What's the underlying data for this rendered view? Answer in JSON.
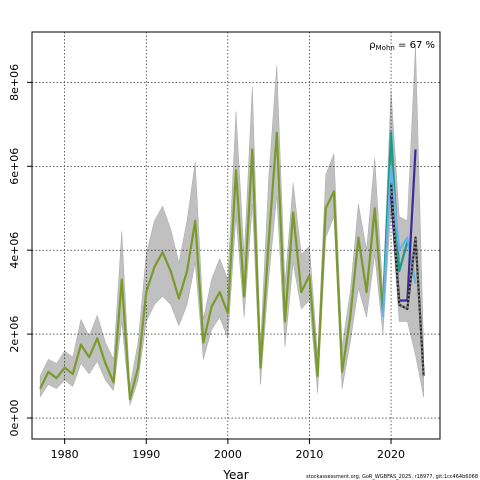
{
  "chart_data": {
    "type": "line",
    "title": "",
    "xlabel": "Year",
    "ylabel": "",
    "xlim": [
      1976,
      2026
    ],
    "ylim": [
      -500000,
      9200000
    ],
    "grid": true,
    "x_ticks": [
      1980,
      1990,
      2000,
      2010,
      2020
    ],
    "y_ticks": [
      0,
      2000000,
      4000000,
      6000000,
      8000000
    ],
    "y_tick_labels": [
      "0e+00",
      "2e+06",
      "4e+06",
      "6e+06",
      "8e+06"
    ],
    "annotation": {
      "rho_symbol": "ρ",
      "rho_subscript": "Mohn",
      "rho_value": " = 67 %"
    },
    "credit": "stockassessment.org, GoR_WGBFAS_2025, r18977, git:1cc464b6068",
    "confidence_band": {
      "x": [
        1977,
        1978,
        1979,
        1980,
        1981,
        1982,
        1983,
        1984,
        1985,
        1986,
        1987,
        1988,
        1989,
        1990,
        1991,
        1992,
        1993,
        1994,
        1995,
        1996,
        1997,
        1998,
        1999,
        2000,
        2001,
        2002,
        2003,
        2004,
        2005,
        2006,
        2007,
        2008,
        2009,
        2010,
        2011,
        2012,
        2013,
        2014,
        2015,
        2016,
        2017,
        2018,
        2019,
        2020,
        2021,
        2022,
        2023,
        2024
      ],
      "lower": [
        500000,
        800000,
        700000,
        900000,
        750000,
        1300000,
        1050000,
        1350000,
        900000,
        650000,
        2300000,
        300000,
        900000,
        2300000,
        2700000,
        2900000,
        2700000,
        2200000,
        2700000,
        3700000,
        1400000,
        2100000,
        2400000,
        1900000,
        4800000,
        2400000,
        5100000,
        800000,
        3300000,
        5300000,
        1700000,
        3700000,
        2600000,
        2800000,
        600000,
        4300000,
        4800000,
        700000,
        1800000,
        3100000,
        2400000,
        3900000,
        2000000,
        5000000,
        2300000,
        2300000,
        1500000,
        500000
      ],
      "upper": [
        1000000,
        1400000,
        1300000,
        1600000,
        1450000,
        2350000,
        1950000,
        2450000,
        1800000,
        1400000,
        4450000,
        750000,
        1800000,
        3900000,
        4700000,
        5050000,
        4500000,
        3700000,
        4700000,
        6100000,
        2350000,
        3300000,
        3800000,
        3300000,
        7300000,
        3850000,
        7900000,
        1700000,
        5700000,
        8400000,
        3200000,
        5600000,
        3900000,
        4100000,
        1500000,
        5800000,
        6300000,
        1700000,
        3000000,
        5100000,
        4000000,
        6200000,
        3000000,
        7800000,
        4800000,
        4700000,
        8900000,
        1600000
      ]
    },
    "series": [
      {
        "color": "#7a9a2a",
        "x": [
          1977,
          1978,
          1979,
          1980,
          1981,
          1982,
          1983,
          1984,
          1985,
          1986,
          1987,
          1988,
          1989,
          1990,
          1991,
          1992,
          1993,
          1994,
          1995,
          1996,
          1997,
          1998,
          1999,
          2000,
          2001,
          2002,
          2003,
          2004,
          2005,
          2006,
          2007,
          2008,
          2009,
          2010,
          2011,
          2012,
          2013,
          2014,
          2015,
          2016,
          2017,
          2018,
          2019,
          2020
        ],
        "values": [
          700000,
          1100000,
          950000,
          1200000,
          1050000,
          1750000,
          1450000,
          1900000,
          1300000,
          850000,
          3300000,
          450000,
          1200000,
          3000000,
          3600000,
          3950000,
          3500000,
          2850000,
          3500000,
          4700000,
          1800000,
          2650000,
          3000000,
          2500000,
          5900000,
          2900000,
          6400000,
          1200000,
          4200000,
          6800000,
          2300000,
          4900000,
          3000000,
          3400000,
          1000000,
          5000000,
          5400000,
          1100000,
          2400000,
          4300000,
          3000000,
          5000000,
          2500000,
          6300000
        ]
      },
      {
        "color": "#1a9a8a",
        "x": [
          2019,
          2020,
          2021,
          2022
        ],
        "values": [
          2600000,
          6800000,
          3500000,
          4200000
        ]
      },
      {
        "color": "#6ab0e8",
        "x": [
          2019,
          2020,
          2021,
          2022,
          2023
        ],
        "values": [
          2400000,
          6000000,
          4000000,
          4300000,
          3200000
        ]
      },
      {
        "color": "#3a2a9a",
        "x": [
          2020,
          2021,
          2022,
          2023
        ],
        "values": [
          5300000,
          2800000,
          2800000,
          6400000
        ]
      },
      {
        "color": "#222222",
        "x": [
          2020,
          2021,
          2022,
          2023,
          2024
        ],
        "values": [
          5600000,
          2700000,
          2600000,
          4300000,
          1000000
        ]
      },
      {
        "color": "#222222",
        "dashed": true,
        "x": [
          2020,
          2021,
          2022,
          2023,
          2024
        ],
        "values": [
          5600000,
          2700000,
          2600000,
          4300000,
          1000000
        ]
      }
    ]
  }
}
